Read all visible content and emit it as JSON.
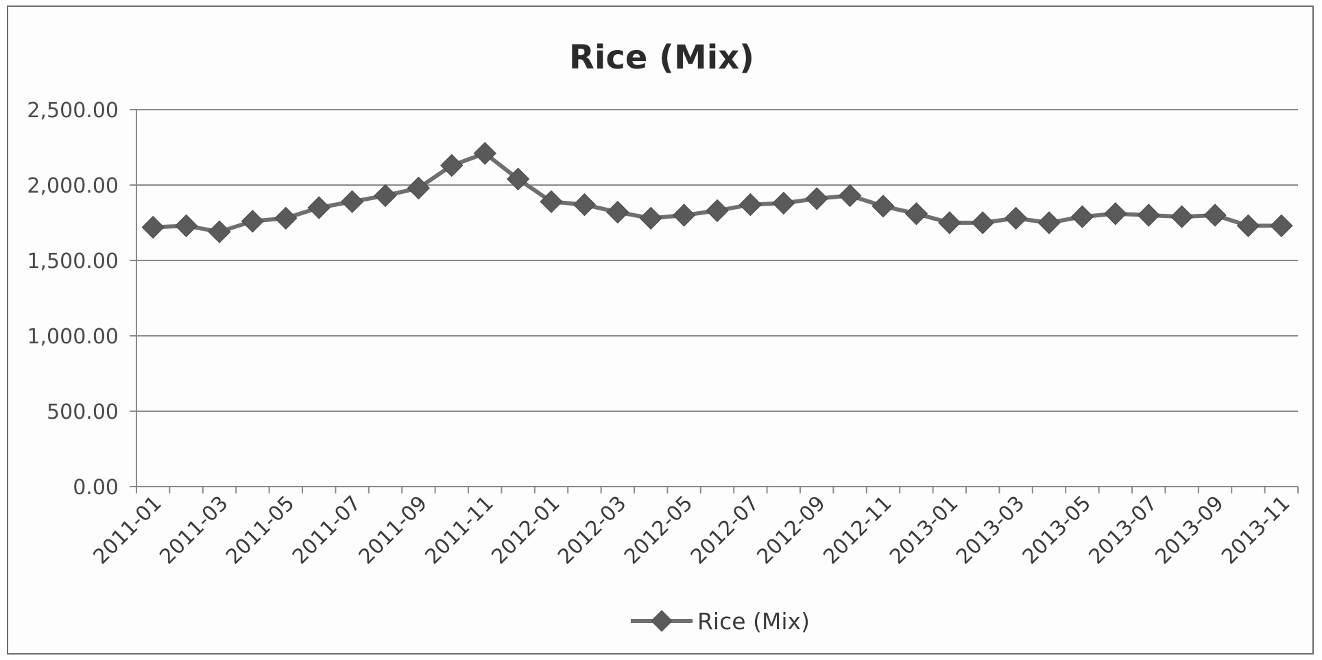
{
  "chart_data": {
    "type": "line",
    "title": "Rice (Mix)",
    "xlabel": "",
    "ylabel": "",
    "ylim": [
      0,
      2500
    ],
    "yticks": [
      "0.00",
      "500.00",
      "1,000.00",
      "1,500.00",
      "2,000.00",
      "2,500.00"
    ],
    "ytick_values": [
      0,
      500,
      1000,
      1500,
      2000,
      2500
    ],
    "x": [
      "2011-01",
      "2011-02",
      "2011-03",
      "2011-04",
      "2011-05",
      "2011-06",
      "2011-07",
      "2011-08",
      "2011-09",
      "2011-10",
      "2011-11",
      "2011-12",
      "2012-01",
      "2012-02",
      "2012-03",
      "2012-04",
      "2012-05",
      "2012-06",
      "2012-07",
      "2012-08",
      "2012-09",
      "2012-10",
      "2012-11",
      "2012-12",
      "2013-01",
      "2013-02",
      "2013-03",
      "2013-04",
      "2013-05",
      "2013-06",
      "2013-07",
      "2013-08",
      "2013-09",
      "2013-10",
      "2013-11"
    ],
    "xtick_labels": [
      "2011-01",
      "2011-03",
      "2011-05",
      "2011-07",
      "2011-09",
      "2011-11",
      "2012-01",
      "2012-03",
      "2012-05",
      "2012-07",
      "2012-09",
      "2012-11",
      "2013-01",
      "2013-03",
      "2013-05",
      "2013-07",
      "2013-09",
      "2013-11"
    ],
    "series": [
      {
        "name": "Rice (Mix)",
        "values": [
          1720,
          1730,
          1690,
          1760,
          1780,
          1850,
          1890,
          1930,
          1980,
          2130,
          2210,
          2040,
          1890,
          1870,
          1820,
          1780,
          1800,
          1830,
          1870,
          1880,
          1910,
          1930,
          1860,
          1810,
          1750,
          1750,
          1780,
          1750,
          1790,
          1810,
          1800,
          1790,
          1800,
          1730,
          1730
        ]
      }
    ],
    "grid": true,
    "legend": "bottom"
  },
  "colors": {
    "line": "#6f6f6f",
    "marker": "#5a5a5a",
    "grid": "#8a8a8a"
  }
}
